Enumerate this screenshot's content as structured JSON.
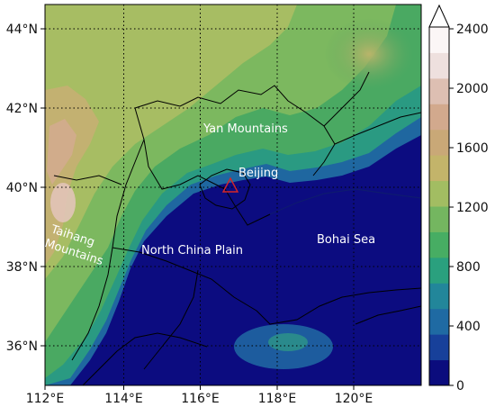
{
  "map": {
    "lon_ticks": [
      "112°E",
      "114°E",
      "116°E",
      "118°E",
      "120°E"
    ],
    "lat_ticks": [
      "44°N",
      "42°N",
      "40°N",
      "38°N",
      "36°N"
    ],
    "labels": {
      "yan": "Yan Mountains",
      "beijing": "Beijing",
      "taihang_1": "Taihang",
      "taihang_2": "Mountains",
      "plain": "North China Plain",
      "bohai": "Bohai Sea"
    },
    "marker_color": "#d62728"
  },
  "colorbar": {
    "ticks": [
      "2400",
      "2000",
      "1600",
      "1200",
      "800",
      "400",
      "0"
    ],
    "colors": [
      "#0b0c7d",
      "#17409a",
      "#1f6aa3",
      "#22869a",
      "#2aa07e",
      "#47ad63",
      "#74b660",
      "#a2bd62",
      "#c3b46a",
      "#c9a877",
      "#d2a98d",
      "#ddbfb2",
      "#eee0de",
      "#fbf6f6"
    ]
  }
}
